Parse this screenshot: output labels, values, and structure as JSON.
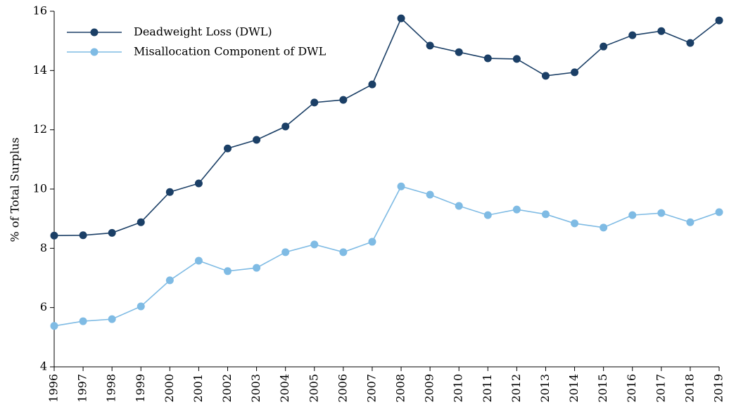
{
  "chart_data": {
    "type": "line",
    "ylabel": "% of Total Surplus",
    "categories": [
      "1996",
      "1997",
      "1998",
      "1999",
      "2000",
      "2001",
      "2002",
      "2003",
      "2004",
      "2005",
      "2006",
      "2007",
      "2008",
      "2009",
      "2010",
      "2011",
      "2012",
      "2013",
      "2014",
      "2015",
      "2016",
      "2017",
      "2018",
      "2019"
    ],
    "series": [
      {
        "name": "Deadweight Loss (DWL)",
        "color": "#1b3f66",
        "values": [
          8.43,
          8.44,
          8.52,
          8.88,
          9.9,
          10.19,
          11.37,
          11.66,
          12.11,
          12.92,
          13.01,
          13.53,
          15.76,
          14.84,
          14.62,
          14.41,
          14.39,
          13.82,
          13.94,
          14.81,
          15.19,
          15.33,
          14.93,
          15.69
        ]
      },
      {
        "name": "Misallocation Component of DWL",
        "color": "#7fbbe4",
        "values": [
          5.38,
          5.54,
          5.61,
          6.04,
          6.92,
          7.58,
          7.23,
          7.34,
          7.87,
          8.13,
          7.87,
          8.22,
          10.09,
          9.81,
          9.43,
          9.12,
          9.31,
          9.15,
          8.84,
          8.7,
          9.12,
          9.19,
          8.88,
          9.22
        ]
      }
    ],
    "ylim": [
      4,
      16
    ],
    "yticks": [
      4,
      6,
      8,
      10,
      12,
      14,
      16
    ],
    "grid": false,
    "legend": "upper left"
  }
}
